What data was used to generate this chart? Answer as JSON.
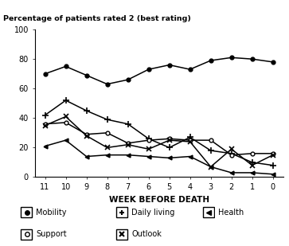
{
  "weeks": [
    11,
    10,
    9,
    8,
    7,
    6,
    5,
    4,
    3,
    2,
    1,
    0
  ],
  "mobility": [
    70,
    75,
    69,
    63,
    66,
    73,
    76,
    73,
    79,
    81,
    80,
    78
  ],
  "daily_living": [
    42,
    52,
    45,
    39,
    36,
    26,
    20,
    27,
    18,
    16,
    10,
    8
  ],
  "health": [
    21,
    25,
    14,
    15,
    15,
    14,
    13,
    14,
    7,
    3,
    3,
    2
  ],
  "support": [
    36,
    37,
    29,
    30,
    23,
    25,
    26,
    25,
    25,
    15,
    16,
    16
  ],
  "outlook": [
    35,
    41,
    28,
    20,
    22,
    19,
    25,
    24,
    7,
    19,
    8,
    15
  ],
  "top_label": "Percentage of patients rated 2 (best rating)",
  "xlabel": "WEEK BEFORE DEATH",
  "yticks": [
    0,
    20,
    40,
    60,
    80,
    100
  ],
  "ylim": [
    0,
    100
  ],
  "bg_color": "#ffffff",
  "legend_items": [
    "Mobility",
    "Daily living",
    "Health",
    "Support",
    "Outlook"
  ]
}
